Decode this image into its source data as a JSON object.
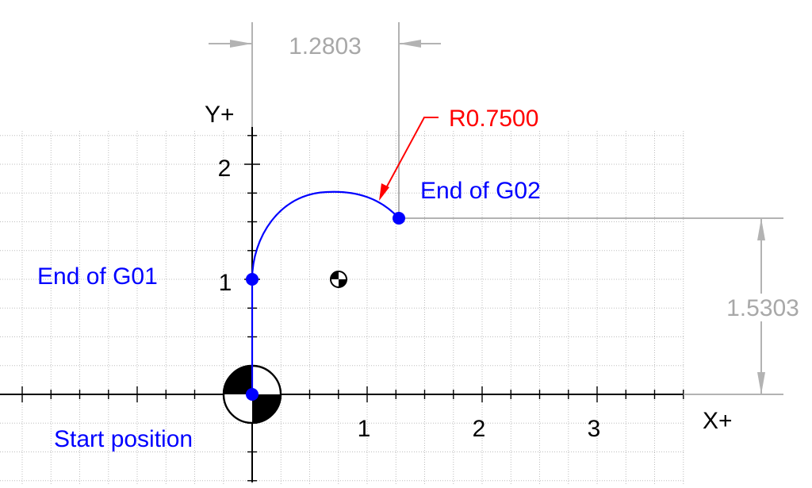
{
  "colors": {
    "path": "#0000ff",
    "radius_note": "#ff0000",
    "dimension": "#a8a8a8",
    "axis": "#000000",
    "grid": "#c8c8c8"
  },
  "axes": {
    "x_label": "X+",
    "y_label": "Y+",
    "x_ticks": [
      "1",
      "2",
      "3"
    ],
    "y_ticks": [
      "1",
      "2"
    ]
  },
  "dimensions": {
    "horizontal": "1.2803",
    "vertical": "1.5303",
    "radius": "R0.7500"
  },
  "points": {
    "start": "Start position",
    "end_g01": "End of G01",
    "end_g02": "End of G02"
  },
  "icons": {
    "origin": "datum-origin-icon",
    "center": "arc-center-icon"
  }
}
